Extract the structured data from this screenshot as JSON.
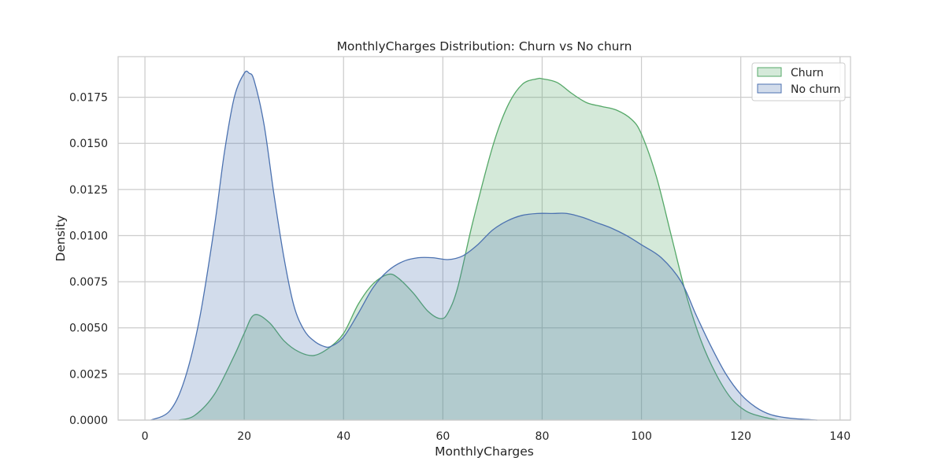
{
  "chart_data": {
    "type": "area",
    "title": "MonthlyCharges Distribution: Churn vs No churn",
    "xlabel": "MonthlyCharges",
    "ylabel": "Density",
    "xlim": [
      -5.4,
      142.1
    ],
    "ylim": [
      0,
      0.0197
    ],
    "x_ticks": [
      0,
      20,
      40,
      60,
      80,
      100,
      120,
      140
    ],
    "x_tick_labels": [
      "0",
      "20",
      "40",
      "60",
      "80",
      "100",
      "120",
      "140"
    ],
    "y_ticks": [
      0,
      0.0025,
      0.005,
      0.0075,
      0.01,
      0.0125,
      0.015,
      0.0175
    ],
    "y_tick_labels": [
      "0.0000",
      "0.0025",
      "0.0050",
      "0.0075",
      "0.0100",
      "0.0125",
      "0.0150",
      "0.0175"
    ],
    "grid": true,
    "legend_position": "top-right",
    "series": [
      {
        "name": "Churn",
        "color": "#55a868",
        "x": [
          6.8,
          10,
          14,
          18,
          20,
          22,
          25,
          28,
          31,
          34,
          37,
          40,
          43,
          46,
          49,
          51,
          54,
          57,
          59.5,
          61,
          63,
          66,
          70,
          73,
          76,
          79,
          80,
          83,
          86,
          89,
          92,
          95,
          98,
          100,
          103,
          106,
          109,
          112,
          115,
          118,
          121,
          124,
          127.5
        ],
        "y": [
          0.0,
          0.00025,
          0.0014,
          0.0035,
          0.0047,
          0.0057,
          0.0053,
          0.0043,
          0.0037,
          0.0035,
          0.0039,
          0.0047,
          0.0063,
          0.0074,
          0.0079,
          0.0077,
          0.0069,
          0.0059,
          0.0055,
          0.0058,
          0.0072,
          0.0107,
          0.0148,
          0.017,
          0.0182,
          0.0185,
          0.0185,
          0.0183,
          0.0177,
          0.0172,
          0.017,
          0.0168,
          0.0163,
          0.0155,
          0.0132,
          0.01,
          0.0068,
          0.0043,
          0.0025,
          0.0012,
          0.0005,
          0.0002,
          0.0
        ]
      },
      {
        "name": "No churn",
        "color": "#4c72b0",
        "x": [
          1.2,
          5,
          8,
          11,
          14,
          16,
          18,
          20,
          21,
          22,
          24,
          26,
          28,
          30,
          32,
          34,
          36,
          37.5,
          40,
          43,
          46,
          49,
          52,
          55,
          58,
          61,
          64,
          67,
          70,
          73,
          76,
          79,
          82,
          85,
          88,
          91,
          94,
          97,
          100,
          104,
          108,
          111,
          114,
          117,
          120,
          123,
          126,
          130,
          135.4
        ],
        "y": [
          0.0,
          0.0005,
          0.0022,
          0.0055,
          0.0105,
          0.0145,
          0.0175,
          0.0188,
          0.0188,
          0.0184,
          0.016,
          0.0122,
          0.0088,
          0.0062,
          0.0049,
          0.0043,
          0.004,
          0.004,
          0.0045,
          0.0058,
          0.0072,
          0.0081,
          0.0086,
          0.0088,
          0.0088,
          0.0087,
          0.0089,
          0.0095,
          0.0103,
          0.0108,
          0.0111,
          0.0112,
          0.0112,
          0.0112,
          0.011,
          0.0107,
          0.0104,
          0.01,
          0.0095,
          0.0088,
          0.0075,
          0.0057,
          0.004,
          0.0025,
          0.0014,
          0.0007,
          0.0003,
          0.0001,
          0.0
        ]
      }
    ]
  }
}
